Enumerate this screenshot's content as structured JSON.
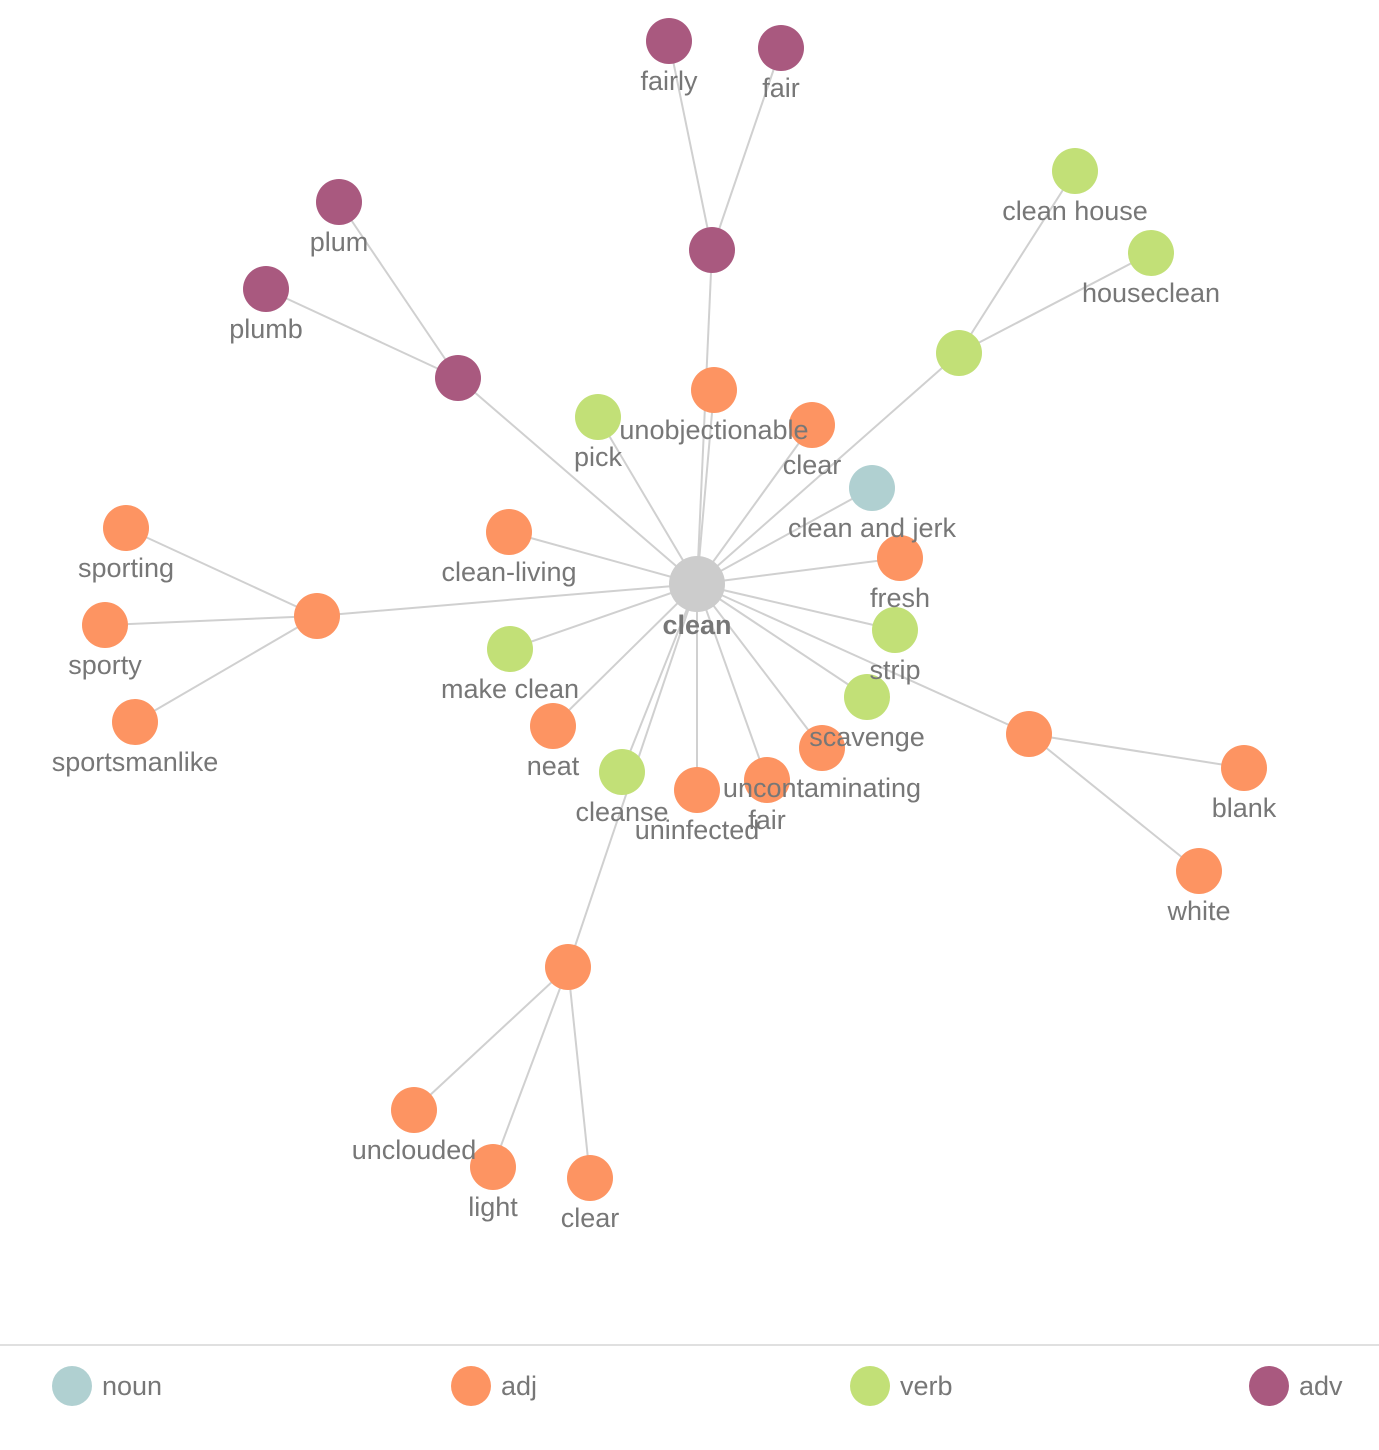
{
  "legend": [
    {
      "name": "noun",
      "color": "#b0d0d1"
    },
    {
      "name": "adj",
      "color": "#fd9462"
    },
    {
      "name": "verb",
      "color": "#c2e077"
    },
    {
      "name": "adv",
      "color": "#a9597f"
    }
  ],
  "root_color": "#cccccc",
  "nodes": [
    {
      "label": "clean"
    },
    {
      "label": "unobjectionable",
      "pos": "adj"
    },
    {
      "label": "clear",
      "pos": "adj"
    },
    {
      "label": "clean and jerk",
      "pos": "noun"
    },
    {
      "label": "fresh",
      "pos": "adj"
    },
    {
      "label": "strip",
      "pos": "verb"
    },
    {
      "label": "scavenge",
      "pos": "verb"
    },
    {
      "label": null,
      "pos": "adj"
    },
    {
      "label": "uncontaminating",
      "pos": "adj"
    },
    {
      "label": "fair",
      "pos": "adj"
    },
    {
      "label": "uninfected",
      "pos": "adj"
    },
    {
      "label": "cleanse",
      "pos": "verb"
    },
    {
      "label": null,
      "pos": "adj"
    },
    {
      "label": "neat",
      "pos": "adj"
    },
    {
      "label": "make clean",
      "pos": "verb"
    },
    {
      "label": null,
      "pos": "adj"
    },
    {
      "label": "clean-living",
      "pos": "adj"
    },
    {
      "label": "pick",
      "pos": "verb"
    },
    {
      "label": null,
      "pos": "adv"
    },
    {
      "label": null,
      "pos": "verb"
    },
    {
      "label": null,
      "pos": "adv"
    },
    {
      "label": "fairly",
      "pos": "adv"
    },
    {
      "label": "fair",
      "pos": "adv"
    },
    {
      "label": "plum",
      "pos": "adv"
    },
    {
      "label": "plumb",
      "pos": "adv"
    },
    {
      "label": "clean house",
      "pos": "verb"
    },
    {
      "label": "houseclean",
      "pos": "verb"
    },
    {
      "label": "sporting",
      "pos": "adj"
    },
    {
      "label": "sporty",
      "pos": "adj"
    },
    {
      "label": "sportsmanlike",
      "pos": "adj"
    },
    {
      "label": "blank",
      "pos": "adj"
    },
    {
      "label": "white",
      "pos": "adj"
    },
    {
      "label": "unclouded",
      "pos": "adj"
    },
    {
      "label": "light",
      "pos": "adj"
    },
    {
      "label": "clear",
      "pos": "adj"
    }
  ],
  "edges": [
    [
      0,
      1
    ],
    [
      0,
      2
    ],
    [
      0,
      3
    ],
    [
      0,
      4
    ],
    [
      0,
      5
    ],
    [
      0,
      6
    ],
    [
      0,
      7
    ],
    [
      0,
      8
    ],
    [
      0,
      9
    ],
    [
      0,
      10
    ],
    [
      0,
      11
    ],
    [
      0,
      12
    ],
    [
      0,
      13
    ],
    [
      0,
      14
    ],
    [
      0,
      15
    ],
    [
      0,
      16
    ],
    [
      0,
      17
    ],
    [
      0,
      18
    ],
    [
      0,
      19
    ],
    [
      0,
      20
    ],
    [
      20,
      21
    ],
    [
      20,
      22
    ],
    [
      18,
      23
    ],
    [
      18,
      24
    ],
    [
      19,
      25
    ],
    [
      19,
      26
    ],
    [
      15,
      27
    ],
    [
      15,
      28
    ],
    [
      15,
      29
    ],
    [
      7,
      30
    ],
    [
      7,
      31
    ],
    [
      12,
      32
    ],
    [
      12,
      33
    ],
    [
      12,
      34
    ]
  ]
}
